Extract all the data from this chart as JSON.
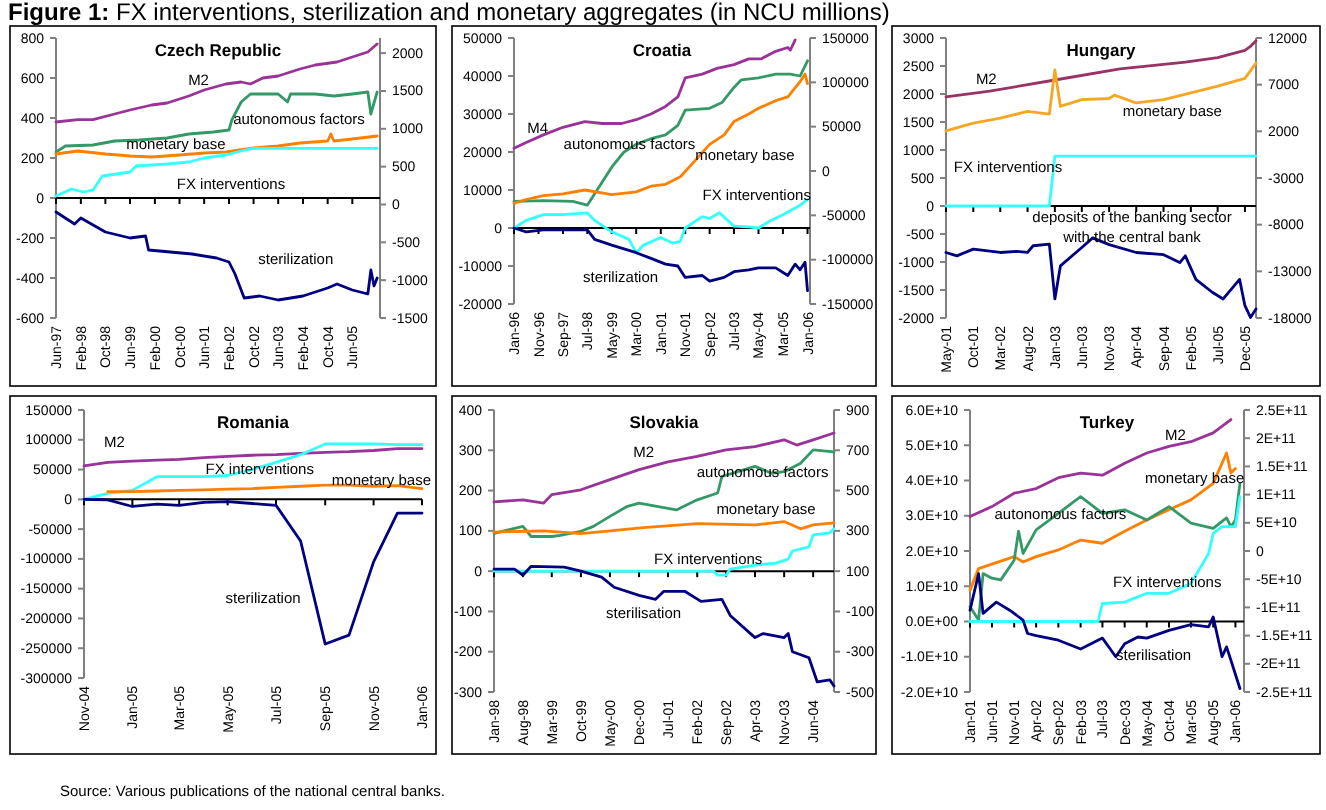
{
  "chart_data": [
    {
      "type": "line",
      "title": "Czech Republic",
      "annotations": [
        "Figure 1: FX interventions, sterilization and monetary aggregates (in NCU millions)"
      ],
      "xlim": [
        "1997-06",
        "2006-03"
      ],
      "xticks": [
        {
          "value": "1997-06",
          "label": "Jun-97"
        },
        {
          "value": "1998-02",
          "label": "Feb-98"
        },
        {
          "value": "1998-10",
          "label": "Oct-98"
        },
        {
          "value": "1999-06",
          "label": "Jun-99"
        },
        {
          "value": "2000-02",
          "label": "Feb-00"
        },
        {
          "value": "2000-10",
          "label": "Oct-00"
        },
        {
          "value": "2001-06",
          "label": "Jun-01"
        },
        {
          "value": "2002-02",
          "label": "Feb-02"
        },
        {
          "value": "2002-10",
          "label": "Oct-02"
        },
        {
          "value": "2003-06",
          "label": "Jun-03"
        },
        {
          "value": "2004-02",
          "label": "Feb-04"
        },
        {
          "value": "2004-10",
          "label": "Oct-04"
        },
        {
          "value": "2005-06",
          "label": "Jun-05"
        }
      ],
      "ylim": [
        -600,
        800
      ],
      "yticks": [
        -600,
        -400,
        -200,
        0,
        200,
        400,
        600,
        800
      ],
      "y2lim": [
        -1500,
        2200
      ],
      "y2ticks": [
        -1500,
        -1000,
        -500,
        0,
        500,
        1000,
        1500,
        2000
      ],
      "series": [
        {
          "name": "M2",
          "color": "#993399",
          "x": [
            "1997-06",
            "1998-01",
            "1998-06",
            "1999-01",
            "1999-06",
            "2000-01",
            "2000-06",
            "2001-01",
            "2001-06",
            "2002-01",
            "2002-06",
            "2002-09",
            "2003-01",
            "2003-06",
            "2004-01",
            "2004-06",
            "2005-01",
            "2005-06",
            "2005-11",
            "2006-02"
          ],
          "values": [
            380,
            392,
            392,
            420,
            440,
            465,
            475,
            510,
            540,
            570,
            580,
            570,
            600,
            610,
            645,
            665,
            680,
            705,
            730,
            770
          ]
        },
        {
          "name": "autonomous factors",
          "color": "#339966",
          "x": [
            "1997-06",
            "1997-09",
            "1998-06",
            "1999-01",
            "1999-09",
            "2000-06",
            "2001-01",
            "2001-09",
            "2002-02",
            "2002-03",
            "2002-06",
            "2002-09",
            "2003-06",
            "2003-09",
            "2003-10",
            "2004-06",
            "2004-12",
            "2005-06",
            "2005-11",
            "2005-12",
            "2006-02"
          ],
          "values": [
            230,
            260,
            265,
            285,
            290,
            300,
            320,
            330,
            340,
            390,
            480,
            520,
            520,
            480,
            520,
            520,
            510,
            520,
            530,
            420,
            530
          ]
        },
        {
          "name": "monetary base",
          "color": "#ff8000",
          "x": [
            "1997-06",
            "1998-01",
            "1998-10",
            "1999-06",
            "2000-01",
            "2000-10",
            "2001-06",
            "2002-01",
            "2002-10",
            "2003-06",
            "2004-01",
            "2004-10",
            "2004-11",
            "2004-12",
            "2005-06",
            "2006-02"
          ],
          "values": [
            220,
            235,
            220,
            210,
            205,
            215,
            225,
            230,
            250,
            260,
            275,
            285,
            320,
            285,
            295,
            310
          ]
        },
        {
          "name": "FX interventions",
          "color": "#33ffff",
          "x": [
            "1997-06",
            "1997-11",
            "1998-03",
            "1998-06",
            "1998-09",
            "1999-06",
            "1999-08",
            "2000-06",
            "2001-01",
            "2001-06",
            "2002-01",
            "2002-06",
            "2002-10",
            "2006-02"
          ],
          "values": [
            10,
            45,
            30,
            40,
            110,
            130,
            160,
            170,
            180,
            200,
            215,
            235,
            248,
            248
          ]
        },
        {
          "name": "sterilization",
          "color": "#000080",
          "x": [
            "1997-06",
            "1997-12",
            "1998-02",
            "1998-10",
            "1999-06",
            "1999-11",
            "1999-12",
            "2001-02",
            "2001-10",
            "2002-02",
            "2002-04",
            "2002-07",
            "2002-12",
            "2003-06",
            "2004-02",
            "2004-10",
            "2005-01",
            "2005-06",
            "2005-11",
            "2005-12",
            "2006-01",
            "2006-02"
          ],
          "values": [
            -70,
            -130,
            -100,
            -170,
            -200,
            -190,
            -260,
            -280,
            -300,
            -320,
            -380,
            -500,
            -490,
            -510,
            -490,
            -450,
            -430,
            -460,
            -480,
            -360,
            -440,
            -400
          ]
        }
      ]
    },
    {
      "type": "line",
      "title": "Croatia",
      "xlim": [
        "1996-01",
        "2006-02"
      ],
      "xticks": [
        {
          "value": "1996-01",
          "label": "Jan-96"
        },
        {
          "value": "1996-11",
          "label": "Nov-96"
        },
        {
          "value": "1997-09",
          "label": "Sep-97"
        },
        {
          "value": "1998-07",
          "label": "Jul-98"
        },
        {
          "value": "1999-05",
          "label": "May-99"
        },
        {
          "value": "2000-03",
          "label": "Mar-00"
        },
        {
          "value": "2001-01",
          "label": "Jan-01"
        },
        {
          "value": "2001-11",
          "label": "Nov-01"
        },
        {
          "value": "2002-09",
          "label": "Sep-02"
        },
        {
          "value": "2003-07",
          "label": "Jul-03"
        },
        {
          "value": "2004-05",
          "label": "May-04"
        },
        {
          "value": "2005-03",
          "label": "Mar-05"
        },
        {
          "value": "2006-01",
          "label": "Jan-06"
        }
      ],
      "ylim": [
        -20000,
        50000
      ],
      "yticks": [
        -20000,
        -10000,
        0,
        10000,
        20000,
        30000,
        40000,
        50000
      ],
      "y2lim": [
        -150000,
        150000
      ],
      "y2ticks": [
        -150000,
        -100000,
        -50000,
        0,
        50000,
        100000,
        150000
      ],
      "series": [
        {
          "name": "M4",
          "color": "#993399",
          "x": [
            "1996-01",
            "1996-06",
            "1997-01",
            "1997-09",
            "1998-06",
            "1999-01",
            "1999-09",
            "2000-03",
            "2000-09",
            "2001-03",
            "2001-08",
            "2001-11",
            "2002-06",
            "2002-12",
            "2003-07",
            "2004-01",
            "2004-06",
            "2004-12",
            "2005-05",
            "2005-06",
            "2005-08"
          ],
          "values": [
            21000,
            22500,
            24500,
            26500,
            28000,
            27500,
            27500,
            28500,
            30000,
            32000,
            34500,
            39500,
            40500,
            42000,
            43000,
            44500,
            44500,
            46500,
            47500,
            46800,
            49500
          ]
        },
        {
          "name": "autonomous factors",
          "color": "#339966",
          "x": [
            "1996-01",
            "1997-01",
            "1998-01",
            "1998-07",
            "1998-10",
            "1999-05",
            "1999-10",
            "2000-03",
            "2000-09",
            "2001-03",
            "2001-08",
            "2001-11",
            "2002-09",
            "2003-02",
            "2003-07",
            "2003-10",
            "2004-05",
            "2004-12",
            "2005-06",
            "2005-10",
            "2006-01"
          ],
          "values": [
            7000,
            7200,
            7000,
            6000,
            9000,
            16000,
            20000,
            22000,
            23500,
            24500,
            27000,
            31000,
            31500,
            33000,
            37000,
            39000,
            39500,
            40500,
            40500,
            40000,
            44000
          ]
        },
        {
          "name": "monetary base",
          "color": "#ff8000",
          "x": [
            "1996-01",
            "1996-06",
            "1997-01",
            "1997-09",
            "1998-06",
            "1999-05",
            "2000-03",
            "2000-09",
            "2001-03",
            "2001-09",
            "2002-02",
            "2002-09",
            "2003-03",
            "2003-07",
            "2004-01",
            "2004-05",
            "2004-12",
            "2005-05",
            "2005-10",
            "2005-12",
            "2006-01"
          ],
          "values": [
            6500,
            7500,
            8500,
            9000,
            10000,
            8800,
            9500,
            11000,
            11500,
            13500,
            17000,
            22000,
            24500,
            28000,
            30000,
            31500,
            33500,
            34500,
            38500,
            40500,
            38000
          ]
        },
        {
          "name": "FX interventions",
          "color": "#33ffff",
          "x": [
            "1996-01",
            "1996-06",
            "1997-01",
            "1997-09",
            "1998-07",
            "1998-10",
            "1999-05",
            "1999-12",
            "2000-03",
            "2000-06",
            "2001-01",
            "2001-06",
            "2001-09",
            "2001-11",
            "2002-06",
            "2002-09",
            "2003-01",
            "2003-07",
            "2004-01",
            "2004-05",
            "2004-10",
            "2005-03",
            "2005-10",
            "2006-01"
          ],
          "values": [
            0,
            2000,
            3500,
            3500,
            4000,
            2000,
            -1000,
            -3000,
            -6500,
            -4500,
            -2500,
            -4000,
            -3500,
            0,
            3000,
            2500,
            4000,
            500,
            300,
            0,
            2000,
            3500,
            6000,
            7500
          ]
        },
        {
          "name": "sterilization",
          "color": "#000080",
          "x": [
            "1996-01",
            "1996-06",
            "1997-01",
            "1997-09",
            "1998-07",
            "1998-10",
            "1999-05",
            "2000-03",
            "2000-09",
            "2001-03",
            "2001-08",
            "2001-11",
            "2002-06",
            "2002-09",
            "2003-03",
            "2003-07",
            "2004-01",
            "2004-05",
            "2004-12",
            "2005-05",
            "2005-08",
            "2005-10",
            "2005-12",
            "2006-01"
          ],
          "values": [
            0,
            -1000,
            -500,
            -500,
            -500,
            -3000,
            -4500,
            -6500,
            -8000,
            -9500,
            -10000,
            -13000,
            -12500,
            -14000,
            -13000,
            -11500,
            -11000,
            -10500,
            -10500,
            -12500,
            -9500,
            -11000,
            -9000,
            -16500
          ]
        }
      ]
    },
    {
      "type": "line",
      "title": "Hungary",
      "xlim": [
        "2001-05",
        "2006-02"
      ],
      "xticks": [
        {
          "value": "2001-05",
          "label": "May-01"
        },
        {
          "value": "2001-10",
          "label": "Oct-01"
        },
        {
          "value": "2002-03",
          "label": "Mar-02"
        },
        {
          "value": "2002-08",
          "label": "Aug-02"
        },
        {
          "value": "2003-01",
          "label": "Jan-03"
        },
        {
          "value": "2003-06",
          "label": "Jun-03"
        },
        {
          "value": "2003-11",
          "label": "Nov-03"
        },
        {
          "value": "2004-04",
          "label": "Apr-04"
        },
        {
          "value": "2004-09",
          "label": "Sep-04"
        },
        {
          "value": "2005-02",
          "label": "Feb-05"
        },
        {
          "value": "2005-07",
          "label": "Jul-05"
        },
        {
          "value": "2005-12",
          "label": "Dec-05"
        }
      ],
      "ylim": [
        -2000,
        3000
      ],
      "yticks": [
        -2000,
        -1500,
        -1000,
        -500,
        0,
        500,
        1000,
        1500,
        2000,
        2500,
        3000
      ],
      "y2lim": [
        -18000,
        12000
      ],
      "y2ticks": [
        -18000,
        -13000,
        -8000,
        -3000,
        2000,
        7000,
        12000
      ],
      "series": [
        {
          "name": "M2",
          "color": "#993366",
          "x": [
            "2001-05",
            "2002-01",
            "2003-01",
            "2004-01",
            "2005-01",
            "2005-07",
            "2005-12",
            "2006-01",
            "2006-02"
          ],
          "values": [
            1950,
            2050,
            2250,
            2450,
            2570,
            2650,
            2780,
            2850,
            2950
          ]
        },
        {
          "name": "monetary base",
          "color": "#f5a623",
          "x": [
            "2001-05",
            "2001-10",
            "2002-03",
            "2002-08",
            "2002-12",
            "2003-01",
            "2003-02",
            "2003-06",
            "2003-11",
            "2003-12",
            "2004-04",
            "2004-09",
            "2005-02",
            "2005-07",
            "2005-12",
            "2006-02"
          ],
          "values": [
            1340,
            1480,
            1570,
            1690,
            1640,
            2430,
            1780,
            1900,
            1920,
            1980,
            1840,
            1900,
            2020,
            2140,
            2280,
            2550
          ]
        },
        {
          "name": "FX interventions",
          "color": "#33ffff",
          "x": [
            "2001-05",
            "2002-12",
            "2003-01",
            "2006-02"
          ],
          "values": [
            0,
            0,
            890,
            890
          ]
        },
        {
          "name": "deposits of the banking sector with the central bank",
          "color": "#000080",
          "x": [
            "2001-05",
            "2001-07",
            "2001-10",
            "2002-03",
            "2002-06",
            "2002-08",
            "2002-09",
            "2002-12",
            "2003-01",
            "2003-02",
            "2003-06",
            "2003-08",
            "2003-11",
            "2004-04",
            "2004-09",
            "2004-12",
            "2005-01",
            "2005-03",
            "2005-06",
            "2005-08",
            "2005-11",
            "2005-12",
            "2006-01",
            "2006-02"
          ],
          "values": [
            -830,
            -890,
            -770,
            -830,
            -810,
            -830,
            -710,
            -680,
            -1660,
            -1070,
            -740,
            -570,
            -690,
            -830,
            -870,
            -1010,
            -890,
            -1310,
            -1540,
            -1660,
            -1310,
            -1780,
            -1990,
            -1840
          ]
        }
      ]
    },
    {
      "type": "line",
      "title": "Romania",
      "annotations": [
        "Source: Various publications of the national central banks."
      ],
      "xlim": [
        "2004-11",
        "2006-01"
      ],
      "xticks": [
        {
          "value": "2004-11",
          "label": "Nov-04"
        },
        {
          "value": "2005-01",
          "label": "Jan-05"
        },
        {
          "value": "2005-03",
          "label": "Mar-05"
        },
        {
          "value": "2005-05",
          "label": "May-05"
        },
        {
          "value": "2005-07",
          "label": "Jul-05"
        },
        {
          "value": "2005-09",
          "label": "Sep-05"
        },
        {
          "value": "2005-11",
          "label": "Nov-05"
        },
        {
          "value": "2006-01",
          "label": "Jan-06"
        }
      ],
      "ylim": [
        -300000,
        150000
      ],
      "yticks": [
        -300000,
        -250000,
        -200000,
        -150000,
        -100000,
        -50000,
        0,
        50000,
        100000,
        150000
      ],
      "x": [
        "2004-11",
        "2004-12",
        "2005-01",
        "2005-02",
        "2005-03",
        "2005-04",
        "2005-05",
        "2005-06",
        "2005-07",
        "2005-08",
        "2005-09",
        "2005-10",
        "2005-11",
        "2005-12",
        "2006-01"
      ],
      "series": [
        {
          "name": "M2",
          "color": "#993399",
          "values": [
            56000,
            62000,
            64000,
            66000,
            67000,
            70000,
            72000,
            74000,
            75000,
            77000,
            79000,
            80000,
            82000,
            85000,
            85000
          ]
        },
        {
          "name": "FX interventions",
          "color": "#33ffff",
          "values": [
            0,
            10000,
            15000,
            38000,
            38000,
            38000,
            40000,
            50000,
            62000,
            75000,
            93000,
            93000,
            93000,
            92000,
            92000
          ]
        },
        {
          "name": "monetary base",
          "color": "#ff8000",
          "values": [
            null,
            13000,
            13000,
            14000,
            15000,
            16000,
            17000,
            18000,
            20000,
            22000,
            24000,
            24000,
            22000,
            23000,
            18000
          ]
        },
        {
          "name": "sterilization",
          "color": "#000080",
          "values": [
            0,
            -1000,
            -12000,
            -8000,
            -10000,
            -5000,
            -4000,
            -7000,
            -10000,
            -70000,
            -243000,
            -228000,
            -105000,
            -23000,
            -23000
          ]
        }
      ]
    },
    {
      "type": "line",
      "title": "Slovakia",
      "xlim": [
        "1998-01",
        "2004-11"
      ],
      "xticks": [
        {
          "value": "1998-01",
          "label": "Jan-98"
        },
        {
          "value": "1998-08",
          "label": "Aug-98"
        },
        {
          "value": "1999-03",
          "label": "Mar-99"
        },
        {
          "value": "1999-10",
          "label": "Oct-99"
        },
        {
          "value": "2000-05",
          "label": "May-00"
        },
        {
          "value": "2000-12",
          "label": "Dec-00"
        },
        {
          "value": "2001-07",
          "label": "Jul-01"
        },
        {
          "value": "2002-02",
          "label": "Feb-02"
        },
        {
          "value": "2002-09",
          "label": "Sep-02"
        },
        {
          "value": "2003-04",
          "label": "Apr-03"
        },
        {
          "value": "2003-11",
          "label": "Nov-03"
        },
        {
          "value": "2004-06",
          "label": "Jun-04"
        }
      ],
      "ylim": [
        -300,
        400
      ],
      "yticks": [
        -300,
        -200,
        -100,
        0,
        100,
        200,
        300,
        400
      ],
      "y2lim": [
        -500,
        900
      ],
      "y2ticks": [
        -500,
        -300,
        -100,
        100,
        300,
        500,
        700,
        900
      ],
      "series": [
        {
          "name": "M2",
          "color": "#993399",
          "x": [
            "1998-01",
            "1998-08",
            "1999-01",
            "1999-03",
            "1999-10",
            "2000-05",
            "2000-12",
            "2001-07",
            "2002-02",
            "2002-09",
            "2003-04",
            "2003-11",
            "2004-02",
            "2004-06",
            "2004-11"
          ],
          "values": [
            172,
            177,
            169,
            190,
            202,
            227,
            252,
            271,
            285,
            301,
            309,
            326,
            313,
            326,
            343
          ]
        },
        {
          "name": "autonomous factors",
          "color": "#339966",
          "x": [
            "1998-01",
            "1998-08",
            "1998-10",
            "1999-03",
            "1999-05",
            "1999-10",
            "2000-01",
            "2000-05",
            "2000-09",
            "2000-12",
            "2001-07",
            "2001-09",
            "2002-02",
            "2002-07",
            "2002-08",
            "2003-04",
            "2003-08",
            "2003-11",
            "2004-03",
            "2004-06",
            "2004-11"
          ],
          "values": [
            94,
            111,
            86,
            86,
            89,
            99,
            111,
            136,
            160,
            169,
            156,
            152,
            177,
            194,
            235,
            260,
            243,
            247,
            268,
            301,
            296
          ]
        },
        {
          "name": "monetary base",
          "color": "#ff8000",
          "x": [
            "1998-01",
            "1999-01",
            "1999-10",
            "2000-05",
            "2001-01",
            "2002-02",
            "2003-04",
            "2003-11",
            "2004-03",
            "2004-06",
            "2004-11"
          ],
          "values": [
            97,
            100,
            93,
            100,
            108,
            118,
            115,
            123,
            105,
            115,
            120
          ]
        },
        {
          "name": "FX interventions",
          "color": "#33ffff",
          "x": [
            "1998-01",
            "2002-06",
            "2002-07",
            "2002-09",
            "2002-10",
            "2003-04",
            "2003-09",
            "2003-12",
            "2004-01",
            "2004-05",
            "2004-06",
            "2004-10",
            "2004-11"
          ],
          "values": [
            0,
            0,
            -10,
            -10,
            5,
            15,
            20,
            30,
            50,
            60,
            90,
            95,
            105
          ]
        },
        {
          "name": "sterilisation",
          "color": "#000080",
          "x": [
            "1998-01",
            "1998-06",
            "1998-08",
            "1998-10",
            "1999-06",
            "1999-10",
            "2000-03",
            "2000-06",
            "2000-12",
            "2001-04",
            "2001-06",
            "2001-11",
            "2002-03",
            "2002-08",
            "2002-10",
            "2003-04",
            "2003-06",
            "2003-11",
            "2003-12",
            "2004-01",
            "2004-05",
            "2004-07",
            "2004-10",
            "2004-11"
          ],
          "values": [
            5,
            5,
            -10,
            12,
            10,
            0,
            -15,
            -40,
            -60,
            -70,
            -50,
            -50,
            -75,
            -70,
            -110,
            -165,
            -155,
            -165,
            -155,
            -200,
            -215,
            -275,
            -270,
            -285
          ]
        }
      ]
    },
    {
      "type": "line",
      "title": "Turkey",
      "xlim": [
        "2001-01",
        "2006-03"
      ],
      "xticks": [
        {
          "value": "2001-01",
          "label": "Jan-01"
        },
        {
          "value": "2001-06",
          "label": "Jun-01"
        },
        {
          "value": "2001-11",
          "label": "Nov-01"
        },
        {
          "value": "2002-04",
          "label": "Apr-02"
        },
        {
          "value": "2002-09",
          "label": "Sep-02"
        },
        {
          "value": "2003-02",
          "label": "Feb-03"
        },
        {
          "value": "2003-07",
          "label": "Jul-03"
        },
        {
          "value": "2003-12",
          "label": "Dec-03"
        },
        {
          "value": "2004-05",
          "label": "May-04"
        },
        {
          "value": "2004-10",
          "label": "Oct-04"
        },
        {
          "value": "2005-03",
          "label": "Mar-05"
        },
        {
          "value": "2005-08",
          "label": "Aug-05"
        },
        {
          "value": "2006-01",
          "label": "Jan-06"
        }
      ],
      "ylim": [
        -20000000000.0,
        60000000000.0
      ],
      "yticks": [
        {
          "value": -20000000000.0,
          "label": "-2.0E+10"
        },
        {
          "value": -10000000000.0,
          "label": "-1.0E+10"
        },
        {
          "value": 0,
          "label": "0.0E+00"
        },
        {
          "value": 10000000000.0,
          "label": "1.0E+10"
        },
        {
          "value": 20000000000.0,
          "label": "2.0E+10"
        },
        {
          "value": 30000000000.0,
          "label": "3.0E+10"
        },
        {
          "value": 40000000000.0,
          "label": "4.0E+10"
        },
        {
          "value": 50000000000.0,
          "label": "5.0E+10"
        },
        {
          "value": 60000000000.0,
          "label": "6.0E+10"
        }
      ],
      "y2lim": [
        -250000000000.0,
        250000000000.0
      ],
      "y2ticks": [
        {
          "value": -250000000000.0,
          "label": "-2.5E+11"
        },
        {
          "value": -200000000000.0,
          "label": "-2E+11"
        },
        {
          "value": -150000000000.0,
          "label": "-1.5E+11"
        },
        {
          "value": -100000000000.0,
          "label": "-1E+11"
        },
        {
          "value": -50000000000.0,
          "label": "-5E+10"
        },
        0,
        {
          "value": 50000000000.0,
          "label": "5E+10"
        },
        {
          "value": 100000000000.0,
          "label": "1E+11"
        },
        {
          "value": 150000000000.0,
          "label": "1.5E+11"
        },
        {
          "value": 200000000000.0,
          "label": "2E+11"
        },
        {
          "value": 250000000000.0,
          "label": "2.5E+11"
        }
      ],
      "series": [
        {
          "name": "M2",
          "color": "#993399",
          "x": [
            "2001-01",
            "2001-06",
            "2001-11",
            "2002-04",
            "2002-09",
            "2003-02",
            "2003-07",
            "2003-12",
            "2004-05",
            "2004-10",
            "2005-03",
            "2005-08",
            "2005-12"
          ],
          "values": [
            29800000000.0,
            32600000000.0,
            36400000000.0,
            37700000000.0,
            40800000000.0,
            42100000000.0,
            41500000000.0,
            44900000000.0,
            47800000000.0,
            49700000000.0,
            51000000000.0,
            53500000000.0,
            57300000000.0
          ]
        },
        {
          "name": "monetary base",
          "color": "#ff8000",
          "x": [
            "2001-01",
            "2001-03",
            "2001-11",
            "2002-01",
            "2002-04",
            "2002-09",
            "2003-02",
            "2003-07",
            "2003-12",
            "2004-05",
            "2004-10",
            "2005-03",
            "2005-08",
            "2005-11",
            "2005-12",
            "2006-01"
          ],
          "values": [
            8900000000.0,
            15000000000.0,
            18400000000.0,
            16900000000.0,
            18400000000.0,
            20300000000.0,
            23100000000.0,
            22200000000.0,
            25600000000.0,
            28800000000.0,
            31700000000.0,
            34500000000.0,
            39200000000.0,
            47800000000.0,
            42100000000.0,
            43400000000.0
          ]
        },
        {
          "name": "autonomous factors",
          "color": "#339966",
          "x": [
            "2001-01",
            "2001-03",
            "2001-04",
            "2001-06",
            "2001-08",
            "2001-11",
            "2001-12",
            "2002-01",
            "2002-04",
            "2002-09",
            "2003-02",
            "2003-07",
            "2003-12",
            "2004-05",
            "2004-10",
            "2005-03",
            "2005-08",
            "2005-11",
            "2005-12",
            "2006-01",
            "2006-02"
          ],
          "values": [
            4200000000.0,
            400000000.0,
            13600000000.0,
            12300000000.0,
            11800000000.0,
            17400000000.0,
            25600000000.0,
            19300000000.0,
            26000000000.0,
            30700000000.0,
            35400000000.0,
            30700000000.0,
            31700000000.0,
            28800000000.0,
            32600000000.0,
            27900000000.0,
            26400000000.0,
            29400000000.0,
            26900000000.0,
            28800000000.0,
            39200000000.0
          ]
        },
        {
          "name": "FX interventions",
          "color": "#33ffff",
          "x": [
            "2001-01",
            "2003-06",
            "2003-07",
            "2003-12",
            "2004-05",
            "2004-10",
            "2005-03",
            "2005-07",
            "2005-08",
            "2005-10",
            "2006-01",
            "2006-02"
          ],
          "values": [
            0,
            0,
            5100000000.0,
            5500000000.0,
            8000000000.0,
            8000000000.0,
            10800000000.0,
            19300000000.0,
            25000000000.0,
            26900000000.0,
            26900000000.0,
            35400000000.0
          ]
        },
        {
          "name": "sterilisation",
          "color": "#000080",
          "x": [
            "2001-01",
            "2001-03",
            "2001-04",
            "2001-07",
            "2001-10",
            "2002-01",
            "2002-02",
            "2002-04",
            "2002-09",
            "2003-02",
            "2003-07",
            "2003-10",
            "2003-12",
            "2004-03",
            "2004-05",
            "2004-10",
            "2005-03",
            "2005-07",
            "2005-08",
            "2005-10",
            "2005-11",
            "2005-12",
            "2006-02"
          ],
          "values": [
            3200000000.0,
            13600000000.0,
            2300000000.0,
            5500000000.0,
            3200000000.0,
            400000000.0,
            -3400000000.0,
            -4000000000.0,
            -5300000000.0,
            -7800000000.0,
            -4700000000.0,
            -10000000000.0,
            -6300000000.0,
            -4400000000.0,
            -4700000000.0,
            -2500000000.0,
            -900000000.0,
            -1500000000.0,
            1300000000.0,
            -10000000000.0,
            -7200000000.0,
            -11000000000.0,
            -19000000000.0
          ]
        }
      ]
    }
  ]
}
